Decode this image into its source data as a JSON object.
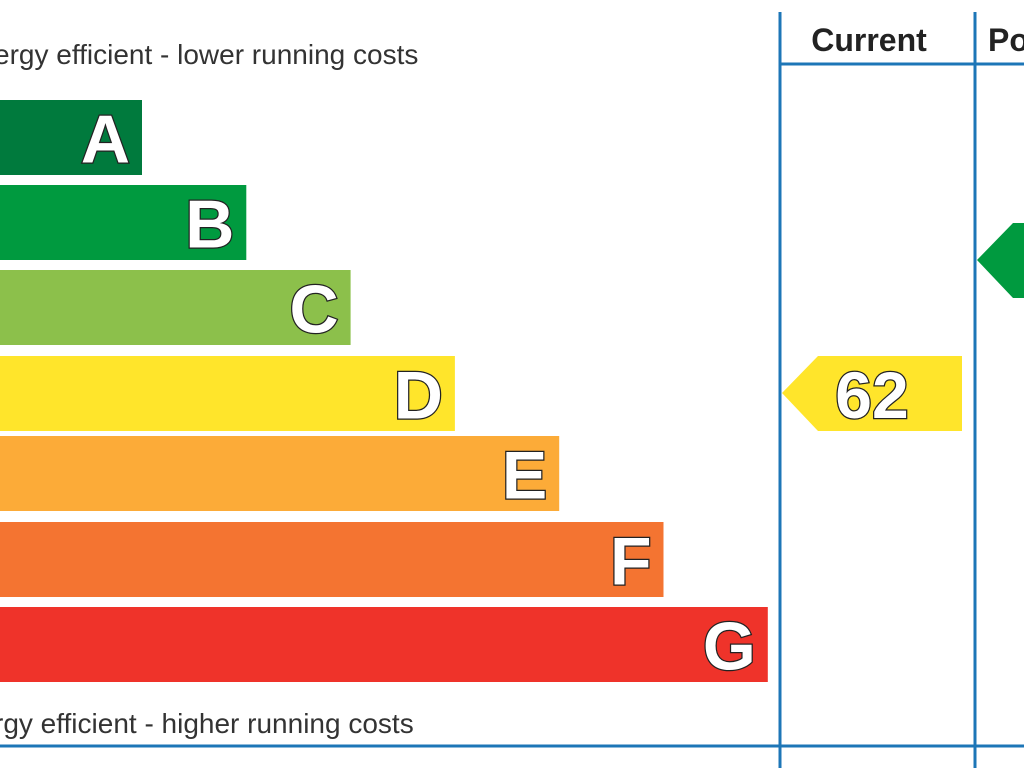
{
  "top_caption": "ergy efficient - lower running costs",
  "bottom_caption": "rgy efficient - higher running costs",
  "columns": {
    "current": "Current",
    "potential": "Po"
  },
  "colors": {
    "frame": "#1d76b7",
    "A": "#007a3d",
    "B": "#009a3f",
    "C": "#8cc04b",
    "D": "#ffe52b",
    "E": "#fcab38",
    "F": "#f47431",
    "G": "#ef332a"
  },
  "chart_data": {
    "type": "bar",
    "categories": [
      "A",
      "B",
      "C",
      "D",
      "E",
      "F",
      "G"
    ],
    "current": {
      "value": "62",
      "band": "D"
    },
    "potential": {
      "value": "",
      "band": "B"
    }
  }
}
